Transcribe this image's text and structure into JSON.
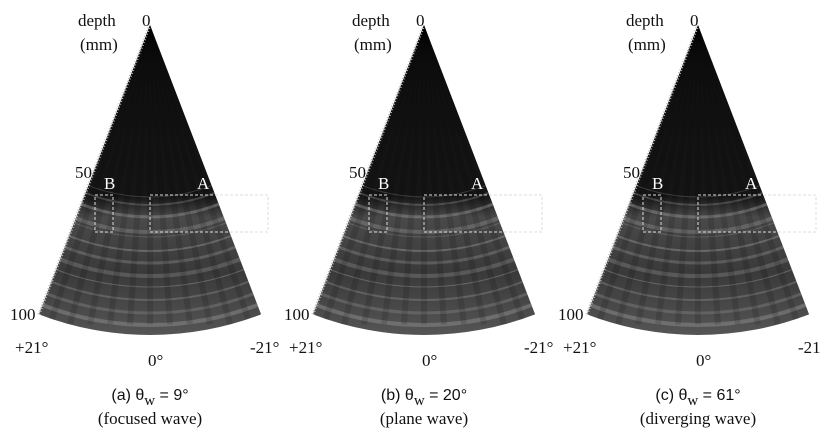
{
  "panels": [
    {
      "depth_label": "depth",
      "unit_label": "(mm)",
      "depth_ticks": [
        "0",
        "50",
        "100"
      ],
      "regions": [
        "B",
        "A"
      ],
      "angles": [
        "+21°",
        "0°",
        "-21°"
      ],
      "caption": {
        "prefix": "(a) θ",
        "subscript": "w",
        "suffix": " = 9°",
        "subtitle": "(focused wave)"
      }
    },
    {
      "depth_label": "depth",
      "unit_label": "(mm)",
      "depth_ticks": [
        "0",
        "50",
        "100"
      ],
      "regions": [
        "B",
        "A"
      ],
      "angles": [
        "+21°",
        "0°",
        "-21°"
      ],
      "caption": {
        "prefix": "(b) θ",
        "subscript": "w",
        "suffix": " = 20°",
        "subtitle": "(plane wave)"
      }
    },
    {
      "depth_label": "depth",
      "unit_label": "(mm)",
      "depth_ticks": [
        "0",
        "50",
        "100"
      ],
      "regions": [
        "B",
        "A"
      ],
      "angles": [
        "+21°",
        "0°",
        "-21"
      ],
      "caption": {
        "prefix": "(c) θ",
        "subscript": "w",
        "suffix": " = 61°",
        "subtitle": "(diverging wave)"
      }
    }
  ]
}
